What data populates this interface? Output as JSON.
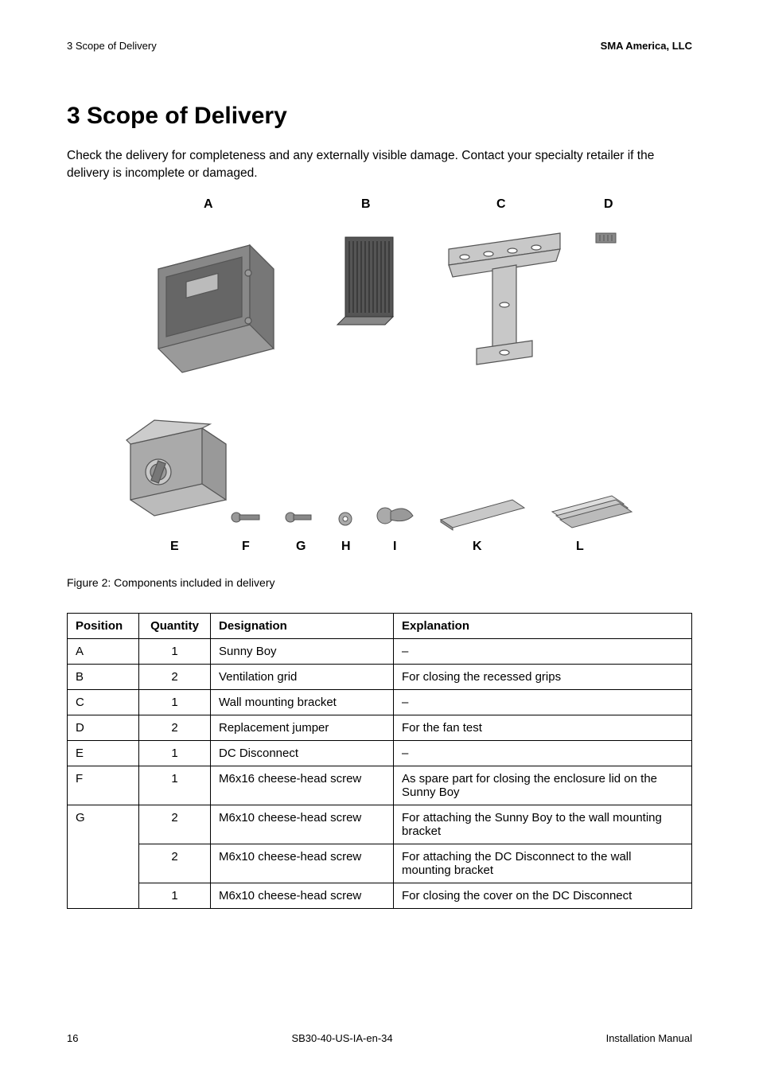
{
  "header": {
    "left": "3  Scope of Delivery",
    "right": "SMA America, LLC"
  },
  "title": "3   Scope of Delivery",
  "intro": "Check the delivery for completeness and any externally visible damage. Contact your specialty retailer if the delivery is incomplete or damaged.",
  "figure": {
    "top_labels": [
      "A",
      "B",
      "C",
      "D"
    ],
    "bottom_labels": [
      "E",
      "F",
      "G",
      "H",
      "I",
      "K",
      "L"
    ],
    "top_positions_x": [
      172,
      370,
      540,
      675
    ],
    "bottom_positions_x": [
      130,
      220,
      288,
      345,
      410,
      510,
      640
    ],
    "caption": "Figure 2:   Components included in delivery"
  },
  "table": {
    "headers": [
      "Position",
      "Quantity",
      "Designation",
      "Explanation"
    ],
    "rows": [
      {
        "pos": "A",
        "qty": "1",
        "des": "Sunny Boy",
        "exp": "–"
      },
      {
        "pos": "B",
        "qty": "2",
        "des": "Ventilation grid",
        "exp": "For closing the recessed grips"
      },
      {
        "pos": "C",
        "qty": "1",
        "des": "Wall mounting bracket",
        "exp": "–"
      },
      {
        "pos": "D",
        "qty": "2",
        "des": "Replacement jumper",
        "exp": "For the fan test"
      },
      {
        "pos": "E",
        "qty": "1",
        "des": "DC Disconnect",
        "exp": "–"
      },
      {
        "pos": "F",
        "qty": "1",
        "des": "M6x16 cheese-head screw",
        "exp": "As spare part for closing the enclosure lid on the Sunny Boy"
      },
      {
        "pos": "G",
        "qty": "2",
        "des": "M6x10 cheese-head screw",
        "exp": "For attaching the Sunny Boy to the wall mounting bracket"
      },
      {
        "pos": "",
        "qty": "2",
        "des": "M6x10 cheese-head screw",
        "exp": "For attaching the DC Disconnect to the wall mounting bracket"
      },
      {
        "pos": "",
        "qty": "1",
        "des": "M6x10 cheese-head screw",
        "exp": "For closing the cover on the DC Disconnect"
      }
    ]
  },
  "footer": {
    "page": "16",
    "doc": "SB30-40-US-IA-en-34",
    "type": "Installation Manual"
  },
  "colors": {
    "text": "#000000",
    "bg": "#ffffff",
    "draw_gray": "#9a9a9a",
    "draw_dark": "#555555"
  }
}
